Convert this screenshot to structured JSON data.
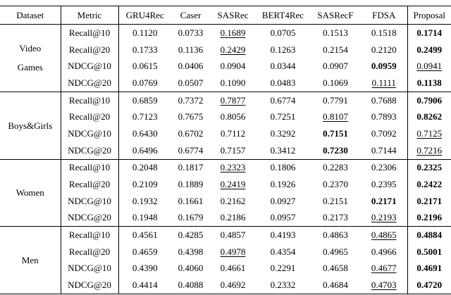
{
  "table": {
    "columns": [
      "Dataset",
      "Metric",
      "GRU4Rec",
      "Caser",
      "SASRec",
      "BERT4Rec",
      "SASRecF",
      "FDSA",
      "Proposal"
    ],
    "groups": [
      {
        "dataset": "Video Games",
        "lines": [
          "Video",
          "Games"
        ],
        "rows": [
          {
            "metric": "Recall@10",
            "values": [
              "0.1120",
              "0.0733",
              "0.1689",
              "0.0705",
              "0.1513",
              "0.1518",
              "0.1714"
            ],
            "styles": [
              "plain",
              "plain",
              "underline",
              "plain",
              "plain",
              "plain",
              "bold"
            ]
          },
          {
            "metric": "Recall@20",
            "values": [
              "0.1733",
              "0.1136",
              "0.2429",
              "0.1263",
              "0.2154",
              "0.2120",
              "0.2499"
            ],
            "styles": [
              "plain",
              "plain",
              "underline",
              "plain",
              "plain",
              "plain",
              "bold"
            ]
          },
          {
            "metric": "NDCG@10",
            "values": [
              "0.0615",
              "0.0406",
              "0.0904",
              "0.0344",
              "0.0907",
              "0.0959",
              "0.0941"
            ],
            "styles": [
              "plain",
              "plain",
              "plain",
              "plain",
              "plain",
              "bold",
              "underline"
            ]
          },
          {
            "metric": "NDCG@20",
            "values": [
              "0.0769",
              "0.0507",
              "0.1090",
              "0.0483",
              "0.1069",
              "0.1111",
              "0.1138"
            ],
            "styles": [
              "plain",
              "plain",
              "plain",
              "plain",
              "plain",
              "underline",
              "bold"
            ]
          }
        ]
      },
      {
        "dataset": "Boys&Girls",
        "lines": [
          "Boys&Girls"
        ],
        "rows": [
          {
            "metric": "Recall@10",
            "values": [
              "0.6859",
              "0.7372",
              "0.7877",
              "0.6774",
              "0.7791",
              "0.7688",
              "0.7906"
            ],
            "styles": [
              "plain",
              "plain",
              "underline",
              "plain",
              "plain",
              "plain",
              "bold"
            ]
          },
          {
            "metric": "Recall@20",
            "values": [
              "0.7123",
              "0.7675",
              "0.8056",
              "0.7251",
              "0.8107",
              "0.7893",
              "0.8262"
            ],
            "styles": [
              "plain",
              "plain",
              "plain",
              "plain",
              "underline",
              "plain",
              "bold"
            ]
          },
          {
            "metric": "NDCG@10",
            "values": [
              "0.6430",
              "0.6702",
              "0.7112",
              "0.3292",
              "0.7151",
              "0.7092",
              "0.7125"
            ],
            "styles": [
              "plain",
              "plain",
              "plain",
              "plain",
              "bold",
              "plain",
              "underline"
            ]
          },
          {
            "metric": "NDCG@20",
            "values": [
              "0.6496",
              "0.6774",
              "0.7157",
              "0.3412",
              "0.7230",
              "0.7144",
              "0.7216"
            ],
            "styles": [
              "plain",
              "plain",
              "plain",
              "plain",
              "bold",
              "plain",
              "underline"
            ]
          }
        ]
      },
      {
        "dataset": "Women",
        "lines": [
          "Women"
        ],
        "rows": [
          {
            "metric": "Recall@10",
            "values": [
              "0.2048",
              "0.1817",
              "0.2323",
              "0.1806",
              "0.2283",
              "0.2306",
              "0.2325"
            ],
            "styles": [
              "plain",
              "plain",
              "underline",
              "plain",
              "plain",
              "plain",
              "bold"
            ]
          },
          {
            "metric": "Recall@20",
            "values": [
              "0.2109",
              "0.1889",
              "0.2419",
              "0.1926",
              "0.2370",
              "0.2395",
              "0.2422"
            ],
            "styles": [
              "plain",
              "plain",
              "underline",
              "plain",
              "plain",
              "plain",
              "bold"
            ]
          },
          {
            "metric": "NDCG@10",
            "values": [
              "0.1932",
              "0.1661",
              "0.2162",
              "0.0927",
              "0.2151",
              "0.2171",
              "0.2171"
            ],
            "styles": [
              "plain",
              "plain",
              "plain",
              "plain",
              "plain",
              "bold",
              "bold"
            ]
          },
          {
            "metric": "NDCG@20",
            "values": [
              "0.1948",
              "0.1679",
              "0.2186",
              "0.0957",
              "0.2173",
              "0.2193",
              "0.2196"
            ],
            "styles": [
              "plain",
              "plain",
              "plain",
              "plain",
              "plain",
              "underline",
              "bold"
            ]
          }
        ]
      },
      {
        "dataset": "Men",
        "lines": [
          "Men"
        ],
        "rows": [
          {
            "metric": "Recall@10",
            "values": [
              "0.4561",
              "0.4285",
              "0.4857",
              "0.4193",
              "0.4863",
              "0.4865",
              "0.4884"
            ],
            "styles": [
              "plain",
              "plain",
              "plain",
              "plain",
              "plain",
              "underline",
              "bold"
            ]
          },
          {
            "metric": "Recall@20",
            "values": [
              "0.4659",
              "0.4398",
              "0.4978",
              "0.4354",
              "0.4965",
              "0.4966",
              "0.5001"
            ],
            "styles": [
              "plain",
              "plain",
              "underline",
              "plain",
              "plain",
              "plain",
              "bold"
            ]
          },
          {
            "metric": "NDCG@10",
            "values": [
              "0.4390",
              "0.4060",
              "0.4661",
              "0.2291",
              "0.4658",
              "0.4677",
              "0.4691"
            ],
            "styles": [
              "plain",
              "plain",
              "plain",
              "plain",
              "plain",
              "underline",
              "bold"
            ]
          },
          {
            "metric": "NDCG@20",
            "values": [
              "0.4414",
              "0.4088",
              "0.4692",
              "0.2332",
              "0.4684",
              "0.4703",
              "0.4720"
            ],
            "styles": [
              "plain",
              "plain",
              "plain",
              "plain",
              "plain",
              "underline",
              "bold"
            ]
          }
        ]
      }
    ]
  },
  "colors": {
    "text": "#000000",
    "rule": "#000000",
    "background": "#ffffff"
  }
}
